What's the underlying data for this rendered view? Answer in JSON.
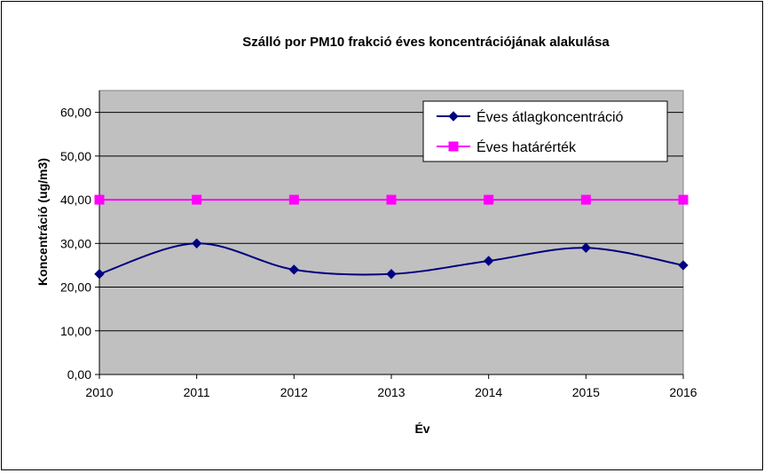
{
  "chart_data": {
    "type": "line",
    "title": "Szálló por PM10 frakció éves koncentrációjának alakulása",
    "xlabel": "Év",
    "ylabel": "Koncentráció  (ug/m3)",
    "x": [
      "2010",
      "2011",
      "2012",
      "2013",
      "2014",
      "2015",
      "2016"
    ],
    "y_ticks": [
      "0,00",
      "10,00",
      "20,00",
      "30,00",
      "40,00",
      "50,00",
      "60,00"
    ],
    "ylim": [
      0,
      65
    ],
    "grid": true,
    "legend_position": "top-right",
    "series": [
      {
        "name": "Éves átlagkoncentráció",
        "values": [
          23,
          30,
          24,
          23,
          26,
          29,
          25
        ],
        "color": "#000080",
        "marker": "diamond",
        "smooth": true
      },
      {
        "name": "Éves határérték",
        "values": [
          40,
          40,
          40,
          40,
          40,
          40,
          40
        ],
        "color": "#FF00FF",
        "marker": "square",
        "smooth": false
      }
    ],
    "plot_background": "#C0C0C0"
  }
}
